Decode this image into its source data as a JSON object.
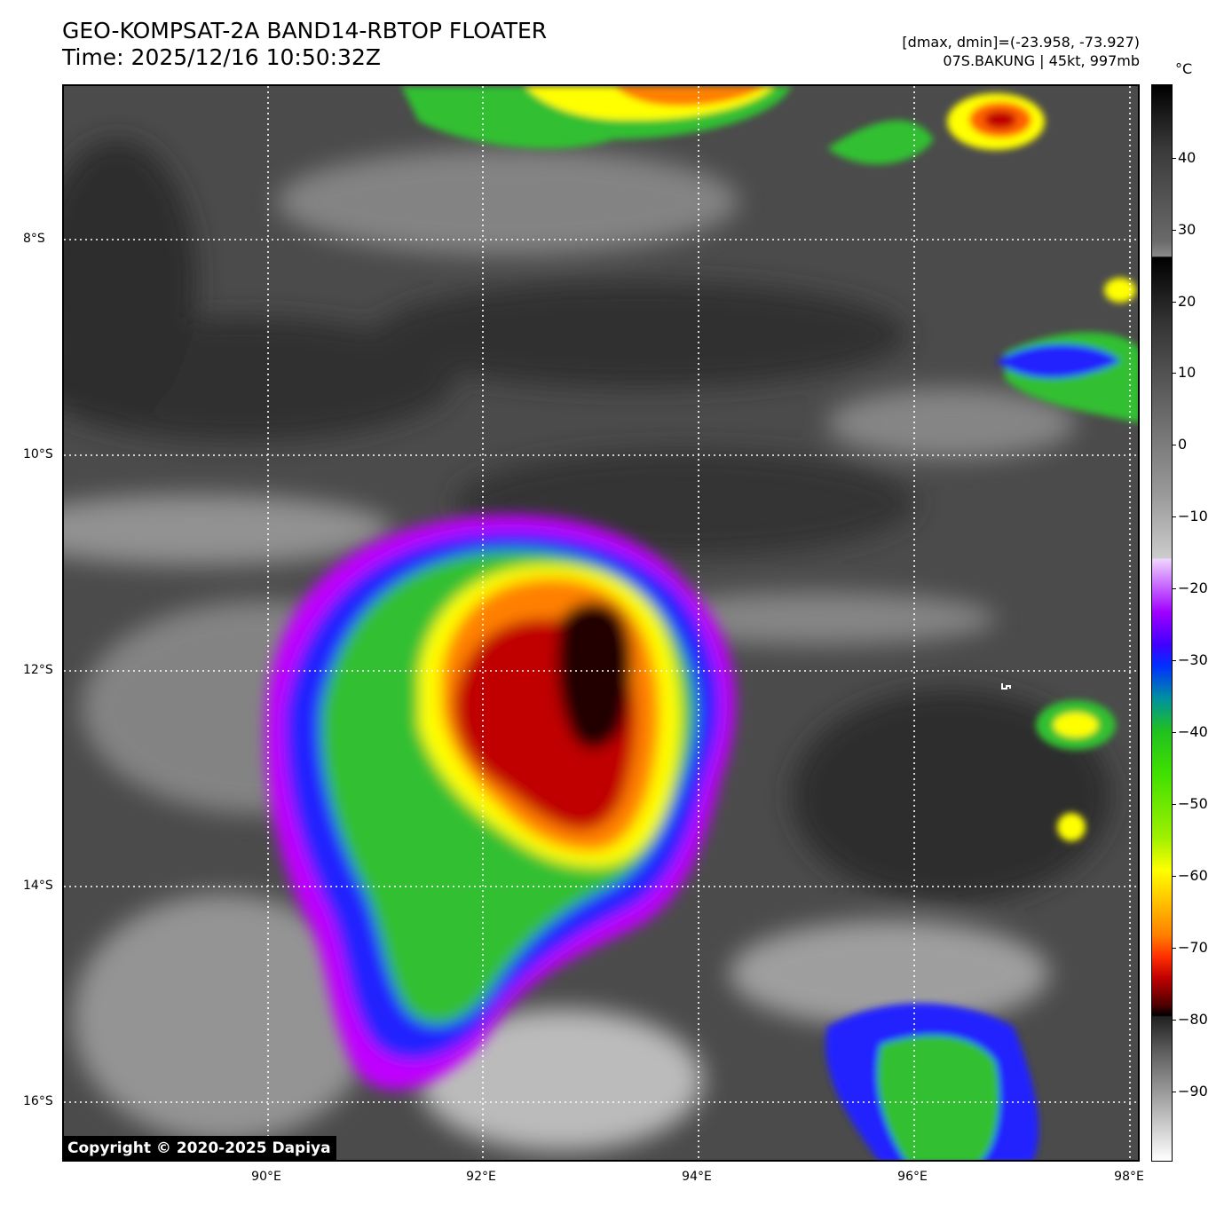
{
  "header": {
    "title_line1": "GEO-KOMPSAT-2A BAND14-RBTOP FLOATER",
    "title_line2": "Time: 2025/12/16 10:50:32Z",
    "range_text": "[dmax, dmin]=(-23.958, -73.927)",
    "storm_text": "07S.BAKUNG | 45kt, 997mb"
  },
  "map": {
    "lat_labels": [
      "8°S",
      "10°S",
      "12°S",
      "14°S",
      "16°S"
    ],
    "lon_labels": [
      "90°E",
      "92°E",
      "94°E",
      "96°E",
      "98°E"
    ],
    "copyright": "Copyright © 2020-2025 Dapiya"
  },
  "colorbar": {
    "unit": "°C",
    "ticks": [
      "40",
      "30",
      "20",
      "10",
      "0",
      "−10",
      "−20",
      "−30",
      "−40",
      "−50",
      "−60",
      "−70",
      "−80",
      "−90"
    ]
  },
  "colors": {
    "cold_top": "#000000",
    "deep_red": "#c00000",
    "orange": "#ff8000",
    "yellow": "#ffff00",
    "green": "#30c030",
    "blue": "#2020ff",
    "violet": "#c000ff"
  }
}
